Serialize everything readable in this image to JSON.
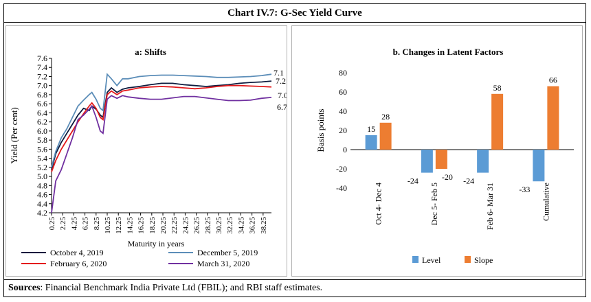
{
  "header": {
    "title": "Chart IV.7: G-Sec Yield Curve"
  },
  "footer": {
    "source_label": "Sources",
    "source_text": ": Financial Benchmark India Private Ltd (FBIL); and RBI staff estimates."
  },
  "chart_data": [
    {
      "type": "line",
      "title": "a: Shifts",
      "xlabel": "Maturity in years",
      "ylabel": "Yield (Per cent)",
      "xlim": [
        0.25,
        39.75
      ],
      "ylim": [
        4.2,
        7.6
      ],
      "y_ticks": [
        "4.2",
        "4.4",
        "4.6",
        "4.8",
        "5.0",
        "5.2",
        "5.4",
        "5.6",
        "5.8",
        "6.0",
        "6.2",
        "6.4",
        "6.6",
        "6.8",
        "7.0",
        "7.2",
        "7.4",
        "7.6"
      ],
      "x_ticks": [
        "0.25",
        "2.25",
        "4.25",
        "6.25",
        "8.25",
        "10.25",
        "12.25",
        "14.25",
        "16.25",
        "18.25",
        "20.25",
        "22.25",
        "24.25",
        "26.25",
        "28.25",
        "30.25",
        "32.25",
        "34.25",
        "36.25",
        "38.25"
      ],
      "series": [
        {
          "name": "October 4, 2019",
          "color": "#0d1b3e",
          "end_label": "7.1",
          "points": [
            [
              0.25,
              5.15
            ],
            [
              1,
              5.5
            ],
            [
              2,
              5.75
            ],
            [
              3,
              5.95
            ],
            [
              4,
              6.15
            ],
            [
              5,
              6.35
            ],
            [
              6,
              6.5
            ],
            [
              7,
              6.45
            ],
            [
              7.5,
              6.55
            ],
            [
              8.25,
              6.48
            ],
            [
              9,
              6.35
            ],
            [
              9.5,
              6.3
            ],
            [
              10.25,
              6.85
            ],
            [
              11,
              6.95
            ],
            [
              12,
              6.85
            ],
            [
              13,
              6.92
            ],
            [
              14,
              6.95
            ],
            [
              16,
              6.98
            ],
            [
              18,
              7.02
            ],
            [
              20,
              7.05
            ],
            [
              22,
              7.05
            ],
            [
              24,
              7.02
            ],
            [
              26,
              7.0
            ],
            [
              28,
              6.98
            ],
            [
              30,
              7.0
            ],
            [
              32,
              7.02
            ],
            [
              34,
              7.05
            ],
            [
              36,
              7.07
            ],
            [
              38,
              7.08
            ],
            [
              39.75,
              7.1
            ]
          ]
        },
        {
          "name": "December 5, 2019",
          "color": "#5b8db8",
          "end_label": "7.2",
          "points": [
            [
              0.25,
              5.2
            ],
            [
              1,
              5.55
            ],
            [
              2,
              5.85
            ],
            [
              3,
              6.05
            ],
            [
              4,
              6.3
            ],
            [
              5,
              6.55
            ],
            [
              6,
              6.68
            ],
            [
              7,
              6.8
            ],
            [
              7.5,
              6.85
            ],
            [
              8.25,
              6.7
            ],
            [
              9,
              6.5
            ],
            [
              9.5,
              6.45
            ],
            [
              10.25,
              7.25
            ],
            [
              11,
              7.15
            ],
            [
              12,
              7.0
            ],
            [
              13,
              7.15
            ],
            [
              14,
              7.15
            ],
            [
              16,
              7.2
            ],
            [
              18,
              7.22
            ],
            [
              20,
              7.23
            ],
            [
              22,
              7.23
            ],
            [
              24,
              7.22
            ],
            [
              26,
              7.21
            ],
            [
              28,
              7.2
            ],
            [
              30,
              7.18
            ],
            [
              32,
              7.18
            ],
            [
              34,
              7.19
            ],
            [
              36,
              7.2
            ],
            [
              38,
              7.22
            ],
            [
              39.75,
              7.25
            ]
          ]
        },
        {
          "name": "February 6, 2020",
          "color": "#e31a1c",
          "end_label": "7.0",
          "points": [
            [
              0.25,
              5.1
            ],
            [
              1,
              5.35
            ],
            [
              2,
              5.6
            ],
            [
              3,
              5.8
            ],
            [
              4,
              6.0
            ],
            [
              5,
              6.2
            ],
            [
              6,
              6.38
            ],
            [
              7,
              6.55
            ],
            [
              7.5,
              6.62
            ],
            [
              8.25,
              6.5
            ],
            [
              9,
              6.3
            ],
            [
              9.5,
              6.25
            ],
            [
              10.25,
              6.8
            ],
            [
              11,
              6.88
            ],
            [
              12,
              6.8
            ],
            [
              13,
              6.88
            ],
            [
              14,
              6.9
            ],
            [
              16,
              6.95
            ],
            [
              18,
              6.97
            ],
            [
              20,
              6.98
            ],
            [
              22,
              6.97
            ],
            [
              24,
              6.95
            ],
            [
              26,
              6.93
            ],
            [
              28,
              6.95
            ],
            [
              30,
              6.98
            ],
            [
              32,
              7.0
            ],
            [
              34,
              7.0
            ],
            [
              36,
              6.99
            ],
            [
              38,
              6.98
            ],
            [
              39.75,
              6.97
            ]
          ]
        },
        {
          "name": "March 31, 2020",
          "color": "#7030a0",
          "end_label": "6.7",
          "points": [
            [
              0.25,
              4.2
            ],
            [
              1,
              4.9
            ],
            [
              2,
              5.15
            ],
            [
              3,
              5.5
            ],
            [
              4,
              5.85
            ],
            [
              5,
              6.25
            ],
            [
              6,
              6.35
            ],
            [
              7,
              6.48
            ],
            [
              7.5,
              6.55
            ],
            [
              8.25,
              6.3
            ],
            [
              9,
              6.0
            ],
            [
              9.5,
              5.95
            ],
            [
              10.25,
              6.7
            ],
            [
              11,
              6.78
            ],
            [
              12,
              6.72
            ],
            [
              13,
              6.78
            ],
            [
              14,
              6.75
            ],
            [
              16,
              6.72
            ],
            [
              18,
              6.7
            ],
            [
              20,
              6.7
            ],
            [
              22,
              6.73
            ],
            [
              24,
              6.76
            ],
            [
              26,
              6.76
            ],
            [
              28,
              6.73
            ],
            [
              30,
              6.7
            ],
            [
              32,
              6.67
            ],
            [
              34,
              6.67
            ],
            [
              36,
              6.68
            ],
            [
              38,
              6.72
            ],
            [
              39.75,
              6.74
            ]
          ]
        }
      ]
    },
    {
      "type": "bar",
      "title": "b. Changes in Latent Factors",
      "ylabel": "Basis points",
      "ylim": [
        -40,
        80
      ],
      "y_ticks": [
        "-40",
        "-20",
        "0",
        "20",
        "40",
        "60",
        "80"
      ],
      "categories": [
        "Oct 4- Dec 4",
        "Dec 5- Feb 5",
        "Feb 6- Mar 31",
        "Cumulative"
      ],
      "series": [
        {
          "name": "Level",
          "color": "#5b9bd5",
          "values": [
            15,
            -24,
            -24,
            -33
          ],
          "labels": [
            "15",
            "-24",
            "-24",
            "-33"
          ]
        },
        {
          "name": "Slope",
          "color": "#ed7d31",
          "values": [
            28,
            -20,
            58,
            66
          ],
          "labels": [
            "28",
            "-20",
            "58",
            "66"
          ]
        }
      ]
    }
  ]
}
